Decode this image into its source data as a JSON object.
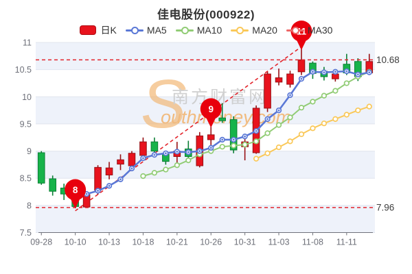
{
  "title": "佳电股份(000922)",
  "legend": {
    "items": [
      {
        "label": "日K",
        "type": "rect",
        "color": "#e8131d"
      },
      {
        "label": "MA5",
        "type": "line",
        "color": "#5a78d6"
      },
      {
        "label": "MA10",
        "type": "line",
        "color": "#91cc75"
      },
      {
        "label": "MA20",
        "type": "line",
        "color": "#fac858"
      },
      {
        "label": "MA30",
        "type": "line",
        "color": "#ee6666"
      }
    ]
  },
  "watermark": {
    "initial": "S",
    "text_cn": "南方财富网",
    "text_en": "outhmoney.com"
  },
  "chart_data": {
    "type": "candlestick",
    "title": "佳电股份(000922)",
    "ylim": [
      7.5,
      11
    ],
    "y_ticks": [
      "7.5",
      "8",
      "8.5",
      "9",
      "9.5",
      "10",
      "10.5",
      "11"
    ],
    "x_axis_labels": [
      "09-28",
      "10-10",
      "10-13",
      "10-18",
      "10-21",
      "10-26",
      "10-31",
      "11-03",
      "11-08",
      "11-11"
    ],
    "x_label_indices": [
      0,
      3,
      6,
      9,
      12,
      15,
      18,
      21,
      24,
      27
    ],
    "grid": "horizontal-bands",
    "legend_position": "top-center",
    "candles": [
      {
        "o": 8.97,
        "h": 9.0,
        "l": 8.38,
        "c": 8.41
      },
      {
        "o": 8.49,
        "h": 8.55,
        "l": 8.18,
        "c": 8.26
      },
      {
        "o": 8.32,
        "h": 8.4,
        "l": 8.1,
        "c": 8.21
      },
      {
        "o": 8.2,
        "h": 8.25,
        "l": 7.96,
        "c": 7.98
      },
      {
        "o": 7.97,
        "h": 8.25,
        "l": 7.96,
        "c": 8.2
      },
      {
        "o": 8.28,
        "h": 8.74,
        "l": 8.2,
        "c": 8.7
      },
      {
        "o": 8.56,
        "h": 8.8,
        "l": 8.48,
        "c": 8.69
      },
      {
        "o": 8.76,
        "h": 8.94,
        "l": 8.65,
        "c": 8.84
      },
      {
        "o": 8.73,
        "h": 9.0,
        "l": 8.7,
        "c": 8.96
      },
      {
        "o": 8.92,
        "h": 9.25,
        "l": 8.9,
        "c": 9.17
      },
      {
        "o": 9.17,
        "h": 9.25,
        "l": 8.92,
        "c": 9.0
      },
      {
        "o": 8.94,
        "h": 9.0,
        "l": 8.75,
        "c": 8.81
      },
      {
        "o": 8.9,
        "h": 9.17,
        "l": 8.71,
        "c": 9.0
      },
      {
        "o": 9.04,
        "h": 9.19,
        "l": 8.78,
        "c": 8.9
      },
      {
        "o": 8.73,
        "h": 9.35,
        "l": 8.7,
        "c": 9.28
      },
      {
        "o": 9.21,
        "h": 9.45,
        "l": 9.06,
        "c": 9.3
      },
      {
        "o": 9.61,
        "h": 9.88,
        "l": 9.52,
        "c": 9.56
      },
      {
        "o": 9.58,
        "h": 9.64,
        "l": 8.96,
        "c": 9.02
      },
      {
        "o": 9.08,
        "h": 9.27,
        "l": 8.83,
        "c": 9.17
      },
      {
        "o": 8.97,
        "h": 9.84,
        "l": 8.95,
        "c": 9.79
      },
      {
        "o": 9.79,
        "h": 10.46,
        "l": 9.72,
        "c": 10.42
      },
      {
        "o": 10.27,
        "h": 10.52,
        "l": 10.21,
        "c": 10.35
      },
      {
        "o": 10.23,
        "h": 10.48,
        "l": 10.17,
        "c": 10.42
      },
      {
        "o": 10.46,
        "h": 10.88,
        "l": 10.4,
        "c": 10.68
      },
      {
        "o": 10.62,
        "h": 10.65,
        "l": 10.33,
        "c": 10.43
      },
      {
        "o": 10.47,
        "h": 10.55,
        "l": 10.3,
        "c": 10.37
      },
      {
        "o": 10.33,
        "h": 10.45,
        "l": 10.28,
        "c": 10.42
      },
      {
        "o": 10.6,
        "h": 10.79,
        "l": 10.4,
        "c": 10.44
      },
      {
        "o": 10.65,
        "h": 10.71,
        "l": 10.29,
        "c": 10.37
      },
      {
        "o": 10.44,
        "h": 10.79,
        "l": 10.4,
        "c": 10.65
      }
    ],
    "series": [
      {
        "name": "MA5",
        "color": "#5a78d6",
        "width": 2.6,
        "start_index": 4,
        "values": [
          8.21,
          8.27,
          8.36,
          8.48,
          8.68,
          8.87,
          8.93,
          8.96,
          8.99,
          8.98,
          9.0,
          9.06,
          9.21,
          9.21,
          9.27,
          9.37,
          9.59,
          9.75,
          10.03,
          10.33,
          10.46,
          10.45,
          10.46,
          10.47,
          10.41,
          10.45
        ]
      },
      {
        "name": "MA10",
        "color": "#91cc75",
        "width": 2,
        "start_index": 9,
        "values": [
          8.54,
          8.6,
          8.66,
          8.74,
          8.83,
          8.94,
          9.0,
          9.08,
          9.1,
          9.12,
          9.18,
          9.33,
          9.48,
          9.62,
          9.8,
          9.91,
          10.02,
          10.11,
          10.25,
          10.37,
          10.46
        ]
      },
      {
        "name": "MA20",
        "color": "#fac858",
        "width": 2,
        "start_index": 19,
        "values": [
          8.86,
          8.96,
          9.07,
          9.18,
          9.31,
          9.42,
          9.51,
          9.59,
          9.67,
          9.75,
          9.82
        ]
      },
      {
        "name": "MA30",
        "color": "#ee6666",
        "width": 2,
        "start_index": null,
        "values": []
      }
    ],
    "marker_pins": [
      {
        "label": "8",
        "index": 3,
        "price": 7.96
      },
      {
        "label": "9",
        "index": 15,
        "price": 9.45
      },
      {
        "label": "11",
        "index": 23,
        "price": 10.88
      }
    ],
    "reference_lines": [
      {
        "label": "10.68",
        "price": 10.68
      },
      {
        "label": "7.96",
        "price": 7.96
      }
    ],
    "trendline": {
      "from_index": 3,
      "from_price": 7.9,
      "to_index": 23,
      "to_price": 10.95
    },
    "colors": {
      "up_fill": "#e8131d",
      "up_border": "#971014",
      "down_fill": "#17b34a",
      "down_border": "#0c7f35",
      "pin": "#e8000d",
      "reference": "#e3232a",
      "trend": "#e3232a",
      "band": "#eef2fa",
      "gridline": "#e0e4ee",
      "axis": "#6E7079",
      "axis_label": "#6E7079",
      "ref_label": "#3d3d3d",
      "watermark_orange": "#f2b26a",
      "watermark_gray": "#c9c9c9"
    }
  }
}
